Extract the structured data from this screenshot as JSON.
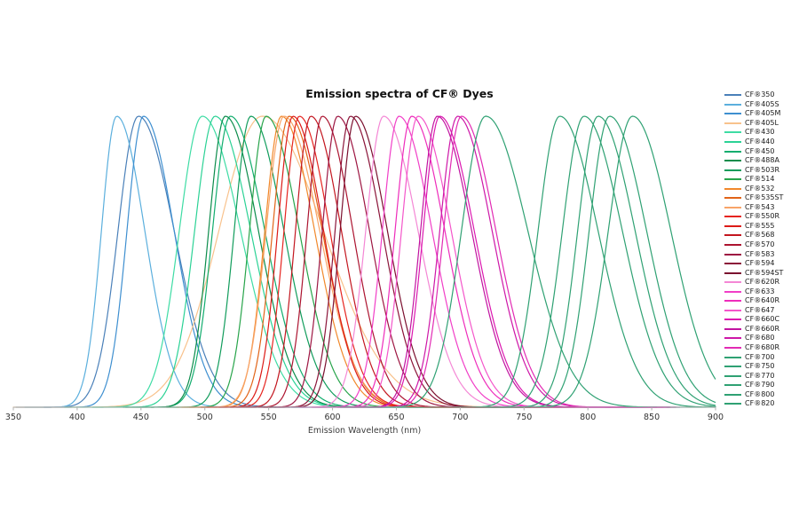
{
  "chart_data": {
    "type": "line",
    "title": "Emission spectra of CF® Dyes",
    "xlabel": "Emission Wavelength (nm)",
    "ylabel": "",
    "xlim": [
      350,
      900
    ],
    "ylim": [
      0,
      1
    ],
    "x_ticks": [
      350,
      400,
      450,
      500,
      550,
      600,
      650,
      700,
      750,
      800,
      850,
      900
    ],
    "grid": false,
    "normalized_intensity": true,
    "legend_position": "right",
    "axis_color": "#b0b0b0",
    "tick_label_color": "#333333",
    "series": [
      {
        "name": "CF®350",
        "color": "#4A80B9",
        "em_max_nm": 448,
        "rise_sigma_nm": 16,
        "tail_sigma_nm": 28,
        "draw_to_nm": 580
      },
      {
        "name": "CF®405S",
        "color": "#5BAFDD",
        "em_max_nm": 431,
        "rise_sigma_nm": 12,
        "tail_sigma_nm": 22,
        "draw_to_nm": 560
      },
      {
        "name": "CF®405M",
        "color": "#3E8FD0",
        "em_max_nm": 452,
        "rise_sigma_nm": 13,
        "tail_sigma_nm": 24,
        "draw_to_nm": 818
      },
      {
        "name": "CF®405L",
        "color": "#F8C28C",
        "em_max_nm": 545,
        "rise_sigma_nm": 34,
        "tail_sigma_nm": 48,
        "draw_to_nm": 745
      },
      {
        "name": "CF®430",
        "color": "#3EDCA4",
        "em_max_nm": 498,
        "rise_sigma_nm": 18,
        "tail_sigma_nm": 30
      },
      {
        "name": "CF®440",
        "color": "#2BD295",
        "em_max_nm": 508,
        "rise_sigma_nm": 16,
        "tail_sigma_nm": 28
      },
      {
        "name": "CF®450",
        "color": "#12AD6E",
        "em_max_nm": 520,
        "rise_sigma_nm": 14,
        "tail_sigma_nm": 27
      },
      {
        "name": "CF®488A",
        "color": "#0B8C4B",
        "em_max_nm": 516,
        "rise_sigma_nm": 13,
        "tail_sigma_nm": 26
      },
      {
        "name": "CF®503R",
        "color": "#109C5B",
        "em_max_nm": 536,
        "rise_sigma_nm": 13,
        "tail_sigma_nm": 26
      },
      {
        "name": "CF®514",
        "color": "#27A44A",
        "em_max_nm": 548,
        "rise_sigma_nm": 13,
        "tail_sigma_nm": 26
      },
      {
        "name": "CF®532",
        "color": "#F1882B",
        "em_max_nm": 560,
        "rise_sigma_nm": 13,
        "tail_sigma_nm": 26
      },
      {
        "name": "CF®535ST",
        "color": "#E16418",
        "em_max_nm": 566,
        "rise_sigma_nm": 13,
        "tail_sigma_nm": 26
      },
      {
        "name": "CF®543",
        "color": "#F8A468",
        "em_max_nm": 562,
        "rise_sigma_nm": 14,
        "tail_sigma_nm": 28
      },
      {
        "name": "CF®550R",
        "color": "#E6241F",
        "em_max_nm": 574,
        "rise_sigma_nm": 12,
        "tail_sigma_nm": 24,
        "draw_to_nm": 780
      },
      {
        "name": "CF®555",
        "color": "#DC1A16",
        "em_max_nm": 569,
        "rise_sigma_nm": 12,
        "tail_sigma_nm": 24,
        "draw_to_nm": 780
      },
      {
        "name": "CF®568",
        "color": "#C3161F",
        "em_max_nm": 583,
        "rise_sigma_nm": 12,
        "tail_sigma_nm": 24,
        "draw_to_nm": 790
      },
      {
        "name": "CF®570",
        "color": "#AC1430",
        "em_max_nm": 592,
        "rise_sigma_nm": 12,
        "tail_sigma_nm": 24,
        "draw_to_nm": 790
      },
      {
        "name": "CF®583",
        "color": "#9D1642",
        "em_max_nm": 604,
        "rise_sigma_nm": 12,
        "tail_sigma_nm": 25,
        "draw_to_nm": 800
      },
      {
        "name": "CF®594",
        "color": "#8B1439",
        "em_max_nm": 614,
        "rise_sigma_nm": 12,
        "tail_sigma_nm": 25,
        "draw_to_nm": 800
      },
      {
        "name": "CF®594ST",
        "color": "#7B102F",
        "em_max_nm": 618,
        "rise_sigma_nm": 12,
        "tail_sigma_nm": 25,
        "draw_to_nm": 800
      },
      {
        "name": "CF®620R",
        "color": "#F487D5",
        "em_max_nm": 640,
        "rise_sigma_nm": 14,
        "tail_sigma_nm": 27,
        "draw_to_nm": 840
      },
      {
        "name": "CF®633",
        "color": "#F13EC7",
        "em_max_nm": 652,
        "rise_sigma_nm": 13,
        "tail_sigma_nm": 26,
        "draw_to_nm": 845
      },
      {
        "name": "CF®640R",
        "color": "#EE2CBB",
        "em_max_nm": 662,
        "rise_sigma_nm": 13,
        "tail_sigma_nm": 26,
        "draw_to_nm": 855
      },
      {
        "name": "CF®647",
        "color": "#F456CA",
        "em_max_nm": 667,
        "rise_sigma_nm": 13,
        "tail_sigma_nm": 26,
        "draw_to_nm": 860
      },
      {
        "name": "CF®660C",
        "color": "#DC17B0",
        "em_max_nm": 684,
        "rise_sigma_nm": 13,
        "tail_sigma_nm": 27,
        "draw_to_nm": 865
      },
      {
        "name": "CF®660R",
        "color": "#C113A0",
        "em_max_nm": 682,
        "rise_sigma_nm": 13,
        "tail_sigma_nm": 27,
        "draw_to_nm": 865
      },
      {
        "name": "CF®680",
        "color": "#CE17A8",
        "em_max_nm": 698,
        "rise_sigma_nm": 14,
        "tail_sigma_nm": 27,
        "draw_to_nm": 870
      },
      {
        "name": "CF®680R",
        "color": "#E22BB4",
        "em_max_nm": 701,
        "rise_sigma_nm": 14,
        "tail_sigma_nm": 27,
        "draw_to_nm": 872
      },
      {
        "name": "CF®700",
        "color": "#2FA173",
        "em_max_nm": 720,
        "rise_sigma_nm": 19,
        "tail_sigma_nm": 33
      },
      {
        "name": "CF®750",
        "color": "#2FA173",
        "em_max_nm": 778,
        "rise_sigma_nm": 17,
        "tail_sigma_nm": 30
      },
      {
        "name": "CF®770",
        "color": "#2FA173",
        "em_max_nm": 797,
        "rise_sigma_nm": 17,
        "tail_sigma_nm": 30
      },
      {
        "name": "CF®790",
        "color": "#2FA173",
        "em_max_nm": 808,
        "rise_sigma_nm": 16,
        "tail_sigma_nm": 29
      },
      {
        "name": "CF®800",
        "color": "#2FA173",
        "em_max_nm": 817,
        "rise_sigma_nm": 16,
        "tail_sigma_nm": 29
      },
      {
        "name": "CF®820",
        "color": "#2FA173",
        "em_max_nm": 835,
        "rise_sigma_nm": 19,
        "tail_sigma_nm": 30
      }
    ]
  }
}
